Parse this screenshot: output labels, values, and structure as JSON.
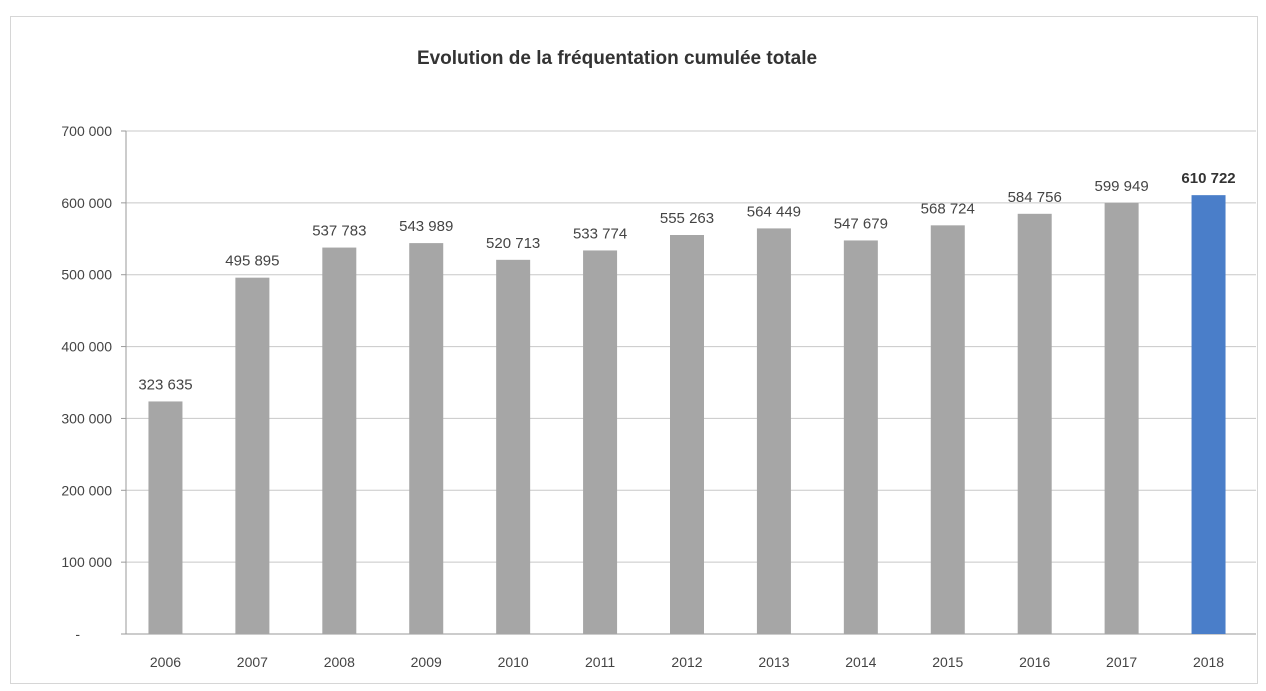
{
  "chart_data": {
    "type": "bar",
    "title": "Evolution de la fréquentation cumulée totale",
    "xlabel": "",
    "ylabel": "",
    "categories": [
      "2006",
      "2007",
      "2008",
      "2009",
      "2010",
      "2011",
      "2012",
      "2013",
      "2014",
      "2015",
      "2016",
      "2017",
      "2018"
    ],
    "values": [
      323635,
      495895,
      537783,
      543989,
      520713,
      533774,
      555263,
      564449,
      547679,
      568724,
      584756,
      599949,
      610722
    ],
    "value_labels": [
      "323 635",
      "495 895",
      "537 783",
      "543 989",
      "520 713",
      "533 774",
      "555 263",
      "564 449",
      "547 679",
      "568 724",
      "584 756",
      "599 949",
      "610 722"
    ],
    "ylim": [
      0,
      700000
    ],
    "y_ticks": [
      0,
      100000,
      200000,
      300000,
      400000,
      500000,
      600000,
      700000
    ],
    "y_tick_labels": [
      "-",
      "100 000",
      "200 000",
      "300 000",
      "400 000",
      "500 000",
      "600 000",
      "700 000"
    ],
    "grid": true,
    "legend": "none",
    "highlight_index": 12,
    "colors": {
      "bar": "#a6a6a6",
      "highlight": "#4a7ec9"
    }
  }
}
